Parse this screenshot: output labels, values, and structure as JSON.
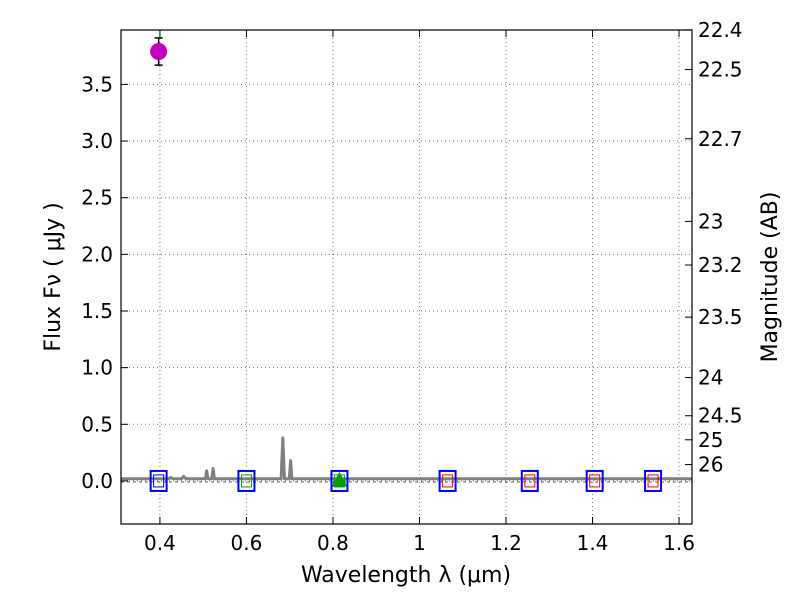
{
  "chart_data": {
    "type": "scatter",
    "xlabel": "Wavelength  λ (μm)",
    "ylabel": "Flux  Fν  ( μJy )",
    "y2label": "Magnitude (AB)",
    "xlim": [
      0.31,
      1.63
    ],
    "ylim": [
      -0.38,
      3.98
    ],
    "grid": true,
    "x_ticks": [
      0.4,
      0.6,
      0.8,
      1.0,
      1.2,
      1.4,
      1.6
    ],
    "x_tick_labels": [
      "0.4",
      "0.6",
      "0.8",
      "1",
      "1.2",
      "1.4",
      "1.6"
    ],
    "y_ticks": [
      0.0,
      0.5,
      1.0,
      1.5,
      2.0,
      2.5,
      3.0,
      3.5
    ],
    "y_tick_labels": [
      "0.0",
      "0.5",
      "1.0",
      "1.5",
      "2.0",
      "2.5",
      "3.0",
      "3.5"
    ],
    "y2_ticks": [
      22.4,
      22.5,
      22.7,
      23,
      23.2,
      23.5,
      24,
      24.5,
      25,
      26
    ],
    "y2_tick_labels": [
      "22.4",
      "22.5",
      "22.7",
      "23",
      "23.2",
      "23.5",
      "24",
      "24.5",
      "25",
      "26"
    ],
    "series": [
      {
        "name": "detection",
        "marker": "circle",
        "color": "#bf00bf",
        "points": [
          {
            "x": 0.397,
            "y": 3.79,
            "yerr": 0.12
          }
        ]
      },
      {
        "name": "triangle",
        "marker": "triangle",
        "color": "#00a000",
        "points": [
          {
            "x": 0.815,
            "y": 0.0
          }
        ]
      },
      {
        "name": "blue-squares",
        "marker": "square",
        "color": "#0000ff",
        "x": [
          0.397,
          0.6,
          0.815,
          1.065,
          1.255,
          1.405,
          1.54
        ],
        "y": [
          0.0,
          0.0,
          0.0,
          0.0,
          0.0,
          0.0,
          0.0
        ]
      },
      {
        "name": "inner-squares",
        "marker": "small-square",
        "colors": [
          "#0000ff",
          "#00a000",
          "#00a000",
          "#ff0000",
          "#ff0000",
          "#ff0000",
          "#ff0000"
        ],
        "x": [
          0.397,
          0.6,
          0.815,
          1.065,
          1.255,
          1.405,
          1.54
        ],
        "y": [
          0.0,
          0.0,
          0.0,
          0.0,
          0.0,
          0.0,
          0.0
        ]
      },
      {
        "name": "model-spectrum",
        "type": "line",
        "color": "#808080",
        "x": [
          0.31,
          0.42,
          0.425,
          0.43,
          0.45,
          0.455,
          0.46,
          0.505,
          0.508,
          0.511,
          0.52,
          0.523,
          0.526,
          0.68,
          0.684,
          0.688,
          0.699,
          0.702,
          0.705,
          1.63
        ],
        "y": [
          0.02,
          0.02,
          0.03,
          0.02,
          0.02,
          0.04,
          0.02,
          0.02,
          0.09,
          0.02,
          0.02,
          0.11,
          0.02,
          0.02,
          0.38,
          0.02,
          0.02,
          0.18,
          0.02,
          0.02
        ]
      }
    ]
  }
}
